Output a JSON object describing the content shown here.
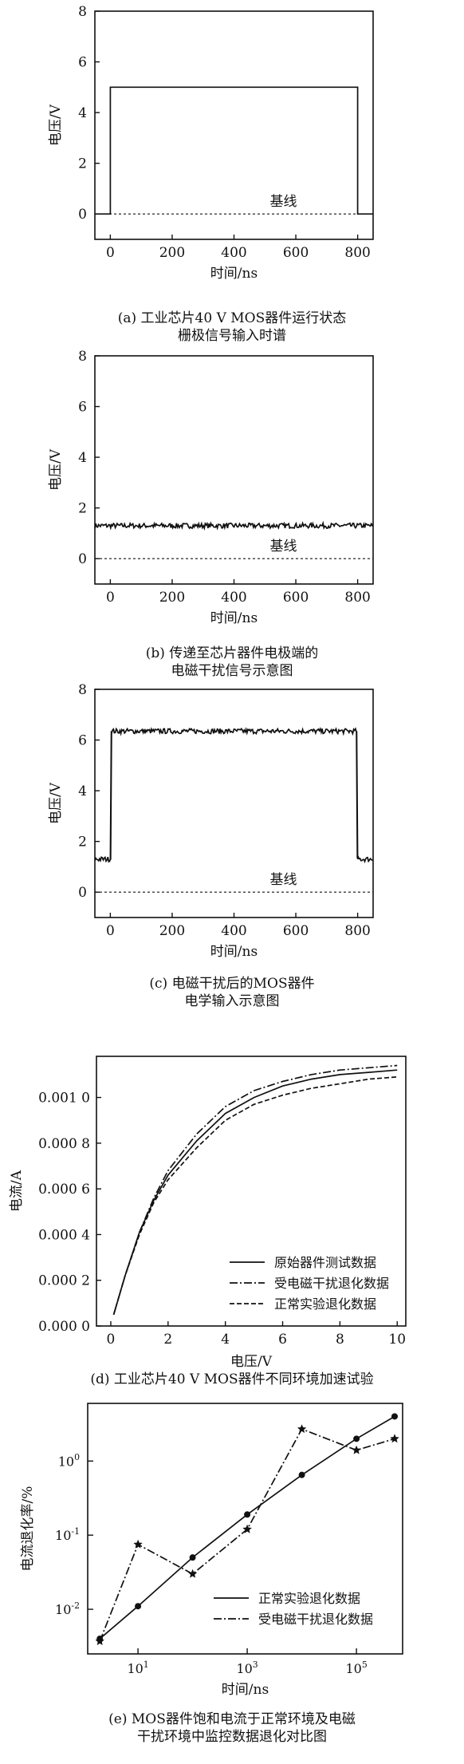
{
  "chart_data": [
    {
      "id": "a",
      "type": "line",
      "xlabel": "时间/ns",
      "ylabel": "电压/V",
      "xlim": [
        -50,
        850
      ],
      "ylim": [
        -1,
        8
      ],
      "xticks": [
        "0",
        "200",
        "400",
        "600",
        "800"
      ],
      "yticks": [
        "0",
        "2",
        "4",
        "6",
        "8"
      ],
      "baseline_label": "基线",
      "baseline_value": 0,
      "series": [
        {
          "style": "solid",
          "x": [
            -50,
            0,
            0,
            800,
            800,
            850
          ],
          "y": [
            0,
            0,
            5,
            5,
            0,
            0
          ]
        }
      ],
      "caption_line1": "(a) 工业芯片40 V MOS器件运行状态",
      "caption_line2": "栅极信号输入时谱"
    },
    {
      "id": "b",
      "type": "line",
      "xlabel": "时间/ns",
      "ylabel": "电压/V",
      "xlim": [
        -50,
        850
      ],
      "ylim": [
        -1,
        8
      ],
      "xticks": [
        "0",
        "200",
        "400",
        "600",
        "800"
      ],
      "yticks": [
        "0",
        "2",
        "4",
        "6",
        "8"
      ],
      "baseline_label": "基线",
      "baseline_value": 0,
      "series": [
        {
          "style": "noisy",
          "level": 1.3,
          "amplitude": 0.1,
          "from": -50,
          "to": 850
        }
      ],
      "caption_line1": "(b) 传递至芯片器件电极端的",
      "caption_line2": "电磁干扰信号示意图"
    },
    {
      "id": "c",
      "type": "line",
      "xlabel": "时间/ns",
      "ylabel": "电压/V",
      "xlim": [
        -50,
        850
      ],
      "ylim": [
        -1,
        8
      ],
      "xticks": [
        "0",
        "200",
        "400",
        "600",
        "800"
      ],
      "yticks": [
        "0",
        "2",
        "4",
        "6",
        "8"
      ],
      "baseline_label": "基线",
      "baseline_value": 0,
      "series": [
        {
          "style": "noisy-pulse",
          "low": 1.3,
          "high": 6.35,
          "amplitude": 0.1,
          "rise": 0,
          "fall": 800,
          "from": -50,
          "to": 850
        }
      ],
      "caption_line1": "(c) 电磁干扰后的MOS器件",
      "caption_line2": "电学输入示意图"
    },
    {
      "id": "d",
      "type": "line",
      "xlabel": "电压/V",
      "ylabel": "电流/A",
      "xlim": [
        -0.5,
        10.3
      ],
      "ylim": [
        0,
        0.00118
      ],
      "xticks": [
        0,
        2,
        4,
        6,
        8,
        10
      ],
      "yticks": [
        0,
        0.0002,
        0.0004,
        0.0006,
        0.0008,
        0.001
      ],
      "ytick_labels": [
        "0.000 0",
        "0.000 2",
        "0.000 4",
        "0.000 6",
        "0.000 8",
        "0.001 0"
      ],
      "legend_position": "bottom-right",
      "series": [
        {
          "name": "原始器件测试数据",
          "style": "solid",
          "x": [
            0.1,
            0.5,
            1,
            1.5,
            2,
            3,
            4,
            5,
            6,
            7,
            8,
            9,
            10
          ],
          "y": [
            5e-05,
            0.00022,
            0.00041,
            0.00055,
            0.00066,
            0.00081,
            0.00093,
            0.001,
            0.00105,
            0.00108,
            0.0011,
            0.00111,
            0.00112
          ]
        },
        {
          "name": "受电磁干扰退化数据",
          "style": "dashdot",
          "x": [
            0.1,
            0.5,
            1,
            1.5,
            2,
            3,
            4,
            5,
            6,
            7,
            8,
            9,
            10
          ],
          "y": [
            5e-05,
            0.00022,
            0.00041,
            0.00056,
            0.00068,
            0.00084,
            0.00096,
            0.00103,
            0.00107,
            0.0011,
            0.00112,
            0.00113,
            0.00114
          ]
        },
        {
          "name": "正常实验退化数据",
          "style": "dashed",
          "x": [
            0.1,
            0.5,
            1,
            1.5,
            2,
            3,
            4,
            5,
            6,
            7,
            8,
            9,
            10
          ],
          "y": [
            5e-05,
            0.00022,
            0.0004,
            0.00054,
            0.00064,
            0.00078,
            0.0009,
            0.00097,
            0.00101,
            0.00104,
            0.00106,
            0.00108,
            0.00109
          ]
        }
      ],
      "caption": "(d) 工业芯片40 V MOS器件不同环境加速试验"
    },
    {
      "id": "e",
      "type": "line",
      "xlabel": "时间/ns",
      "ylabel": "电流退化率/%",
      "xscale": "log",
      "yscale": "log",
      "xlim": [
        1.2,
        700000
      ],
      "ylim": [
        0.0025,
        6
      ],
      "xticks": [
        10,
        1000,
        100000
      ],
      "xtick_labels": [
        [
          "10",
          "1"
        ],
        [
          "10",
          "3"
        ],
        [
          "10",
          "5"
        ]
      ],
      "yticks": [
        0.01,
        0.1,
        1
      ],
      "ytick_labels": [
        [
          "10",
          "-2"
        ],
        [
          "10",
          "-1"
        ],
        [
          "10",
          "0"
        ]
      ],
      "legend_position": "bottom-right",
      "series": [
        {
          "name": "正常实验退化数据",
          "style": "solid",
          "marker": "dot",
          "x": [
            2,
            10,
            100,
            1000,
            10000,
            100000,
            500000
          ],
          "y": [
            0.004,
            0.011,
            0.05,
            0.19,
            0.65,
            2.0,
            4.0
          ]
        },
        {
          "name": "受电磁干扰退化数据",
          "style": "dashdot",
          "marker": "star",
          "x": [
            2,
            10,
            100,
            1000,
            10000,
            100000,
            500000
          ],
          "y": [
            0.0037,
            0.075,
            0.03,
            0.12,
            2.7,
            1.4,
            2.0
          ]
        }
      ],
      "caption_line1": "(e) MOS器件饱和电流于正常环境及电磁",
      "caption_line2": "干扰环境中监控数据退化对比图"
    }
  ]
}
